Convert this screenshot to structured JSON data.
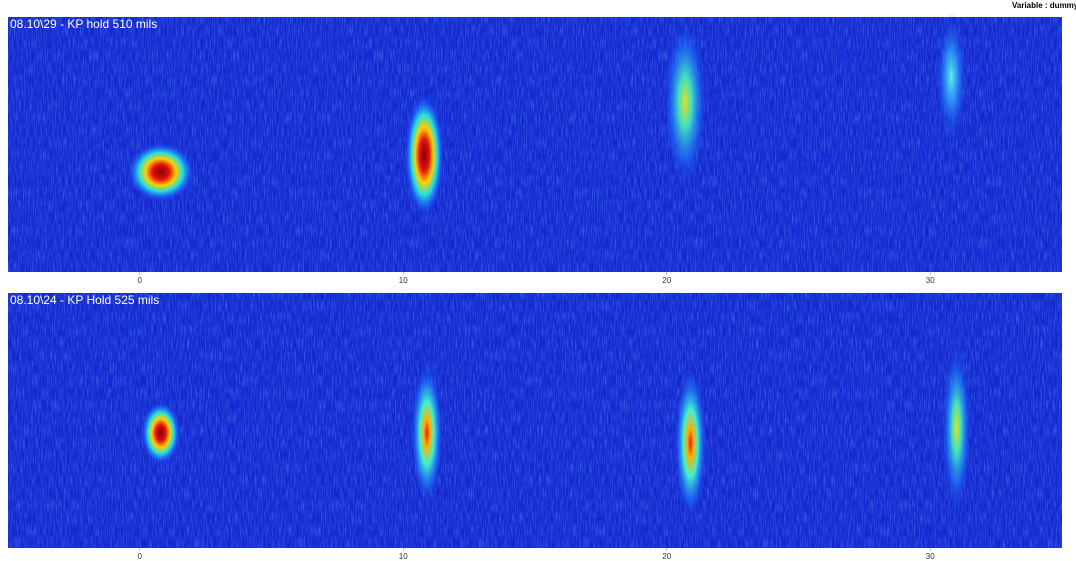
{
  "header": "Variable : dummy",
  "chart_data": [
    {
      "type": "heatmap",
      "title": "08.10\\29 - KP hold 510 mils",
      "xlim": [
        -5,
        35
      ],
      "xticks": [
        0,
        10,
        20,
        30
      ],
      "spots_x": [
        0.8,
        10.8,
        20.7,
        30.8
      ]
    },
    {
      "type": "heatmap",
      "title": "08.10\\24 - KP Hold 525 mils",
      "xlim": [
        -5,
        35
      ],
      "xticks": [
        0,
        10,
        20,
        30
      ],
      "spots_x": [
        0.8,
        10.9,
        20.9,
        31
      ]
    }
  ]
}
